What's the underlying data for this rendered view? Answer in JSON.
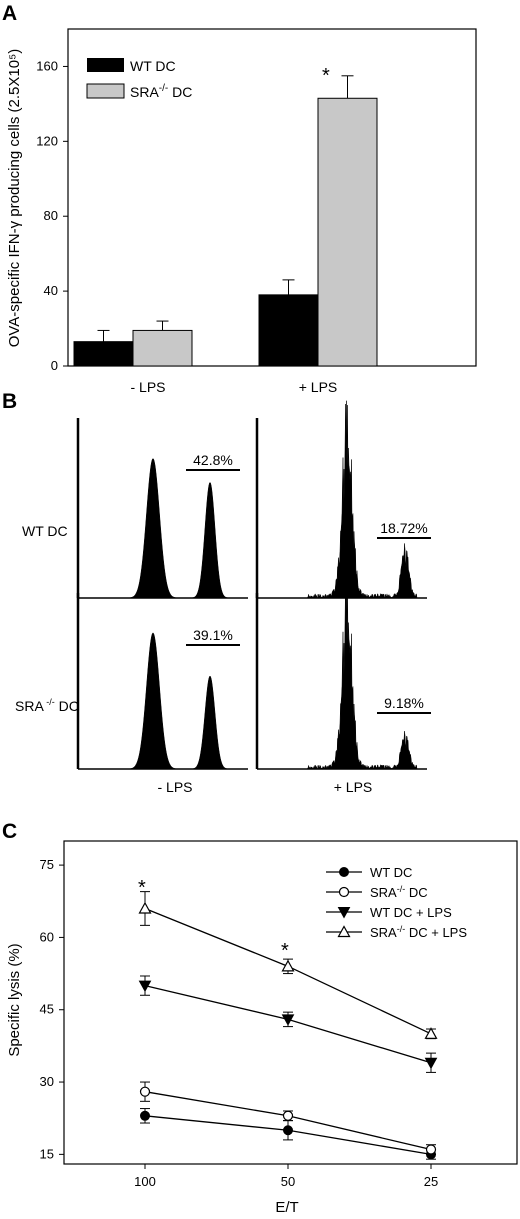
{
  "panels": {
    "a": "A",
    "b": "B",
    "c": "C"
  },
  "chart_data": [
    {
      "type": "bar",
      "panel": "A",
      "ylabel": "OVA-specific IFN-γ producing cells (2.5X10⁵)",
      "ylim": [
        0,
        180
      ],
      "yticks": [
        0,
        40,
        80,
        120,
        160
      ],
      "categories": [
        "- LPS",
        "+ LPS"
      ],
      "series": [
        {
          "name": "WT DC",
          "color": "#000000",
          "values": [
            13,
            38
          ],
          "errors": [
            6,
            8
          ]
        },
        {
          "name": "SRA-/- DC",
          "color": "#c8c8c8",
          "values": [
            19,
            143
          ],
          "errors": [
            5,
            12
          ]
        }
      ],
      "legend": {
        "placement": "top-left",
        "wt": "WT DC",
        "sra_main": "SRA",
        "sra_sup": "-/-",
        "sra_tail": " DC"
      },
      "annotations": [
        {
          "text": "*",
          "category": "+ LPS",
          "series": "SRA-/- DC"
        }
      ]
    },
    {
      "type": "histogram-grid",
      "panel": "B",
      "rows": [
        {
          "label": "WT DC",
          "label_main": "WT DC",
          "label_sup": "",
          "label_tail": ""
        },
        {
          "label": "SRA -/- DC",
          "label_main": "SRA",
          "label_sup": " -/-",
          "label_tail": " DC"
        }
      ],
      "columns": [
        "- LPS",
        "+ LPS"
      ],
      "percentages": [
        [
          "42.8%",
          "18.72%"
        ],
        [
          "39.1%",
          "9.18%"
        ]
      ]
    },
    {
      "type": "line",
      "panel": "C",
      "xlabel": "E/T",
      "ylabel": "Specific lysis (%)",
      "x": [
        100,
        50,
        25
      ],
      "xticks": [
        "100",
        "50",
        "25"
      ],
      "ylim": [
        13,
        80
      ],
      "yticks": [
        15,
        30,
        45,
        60,
        75
      ],
      "series": [
        {
          "name": "WT DC",
          "marker": "filled-circle",
          "values": [
            23,
            20,
            15
          ],
          "errors": [
            1.5,
            2,
            1
          ]
        },
        {
          "name": "SRA-/- DC",
          "marker": "open-circle",
          "values": [
            28,
            23,
            16
          ],
          "errors": [
            2,
            1,
            1
          ]
        },
        {
          "name": "WT DC + LPS",
          "marker": "filled-triangle-down",
          "values": [
            50,
            43,
            34
          ],
          "errors": [
            2,
            1.5,
            2
          ]
        },
        {
          "name": "SRA-/- DC + LPS",
          "marker": "open-triangle-up",
          "values": [
            66,
            54,
            40
          ],
          "errors": [
            3.5,
            1.5,
            1
          ]
        }
      ],
      "legend": {
        "placement": "top-right",
        "entries": [
          {
            "main": "WT DC",
            "sup": "",
            "tail": ""
          },
          {
            "main": "SRA",
            "sup": "-/-",
            "tail": " DC"
          },
          {
            "main": "WT DC + LPS",
            "sup": "",
            "tail": ""
          },
          {
            "main": "SRA",
            "sup": "-/-",
            "tail": " DC + LPS"
          }
        ]
      },
      "annotations": [
        {
          "text": "*",
          "x": 100
        },
        {
          "text": "*",
          "x": 50
        }
      ]
    }
  ]
}
